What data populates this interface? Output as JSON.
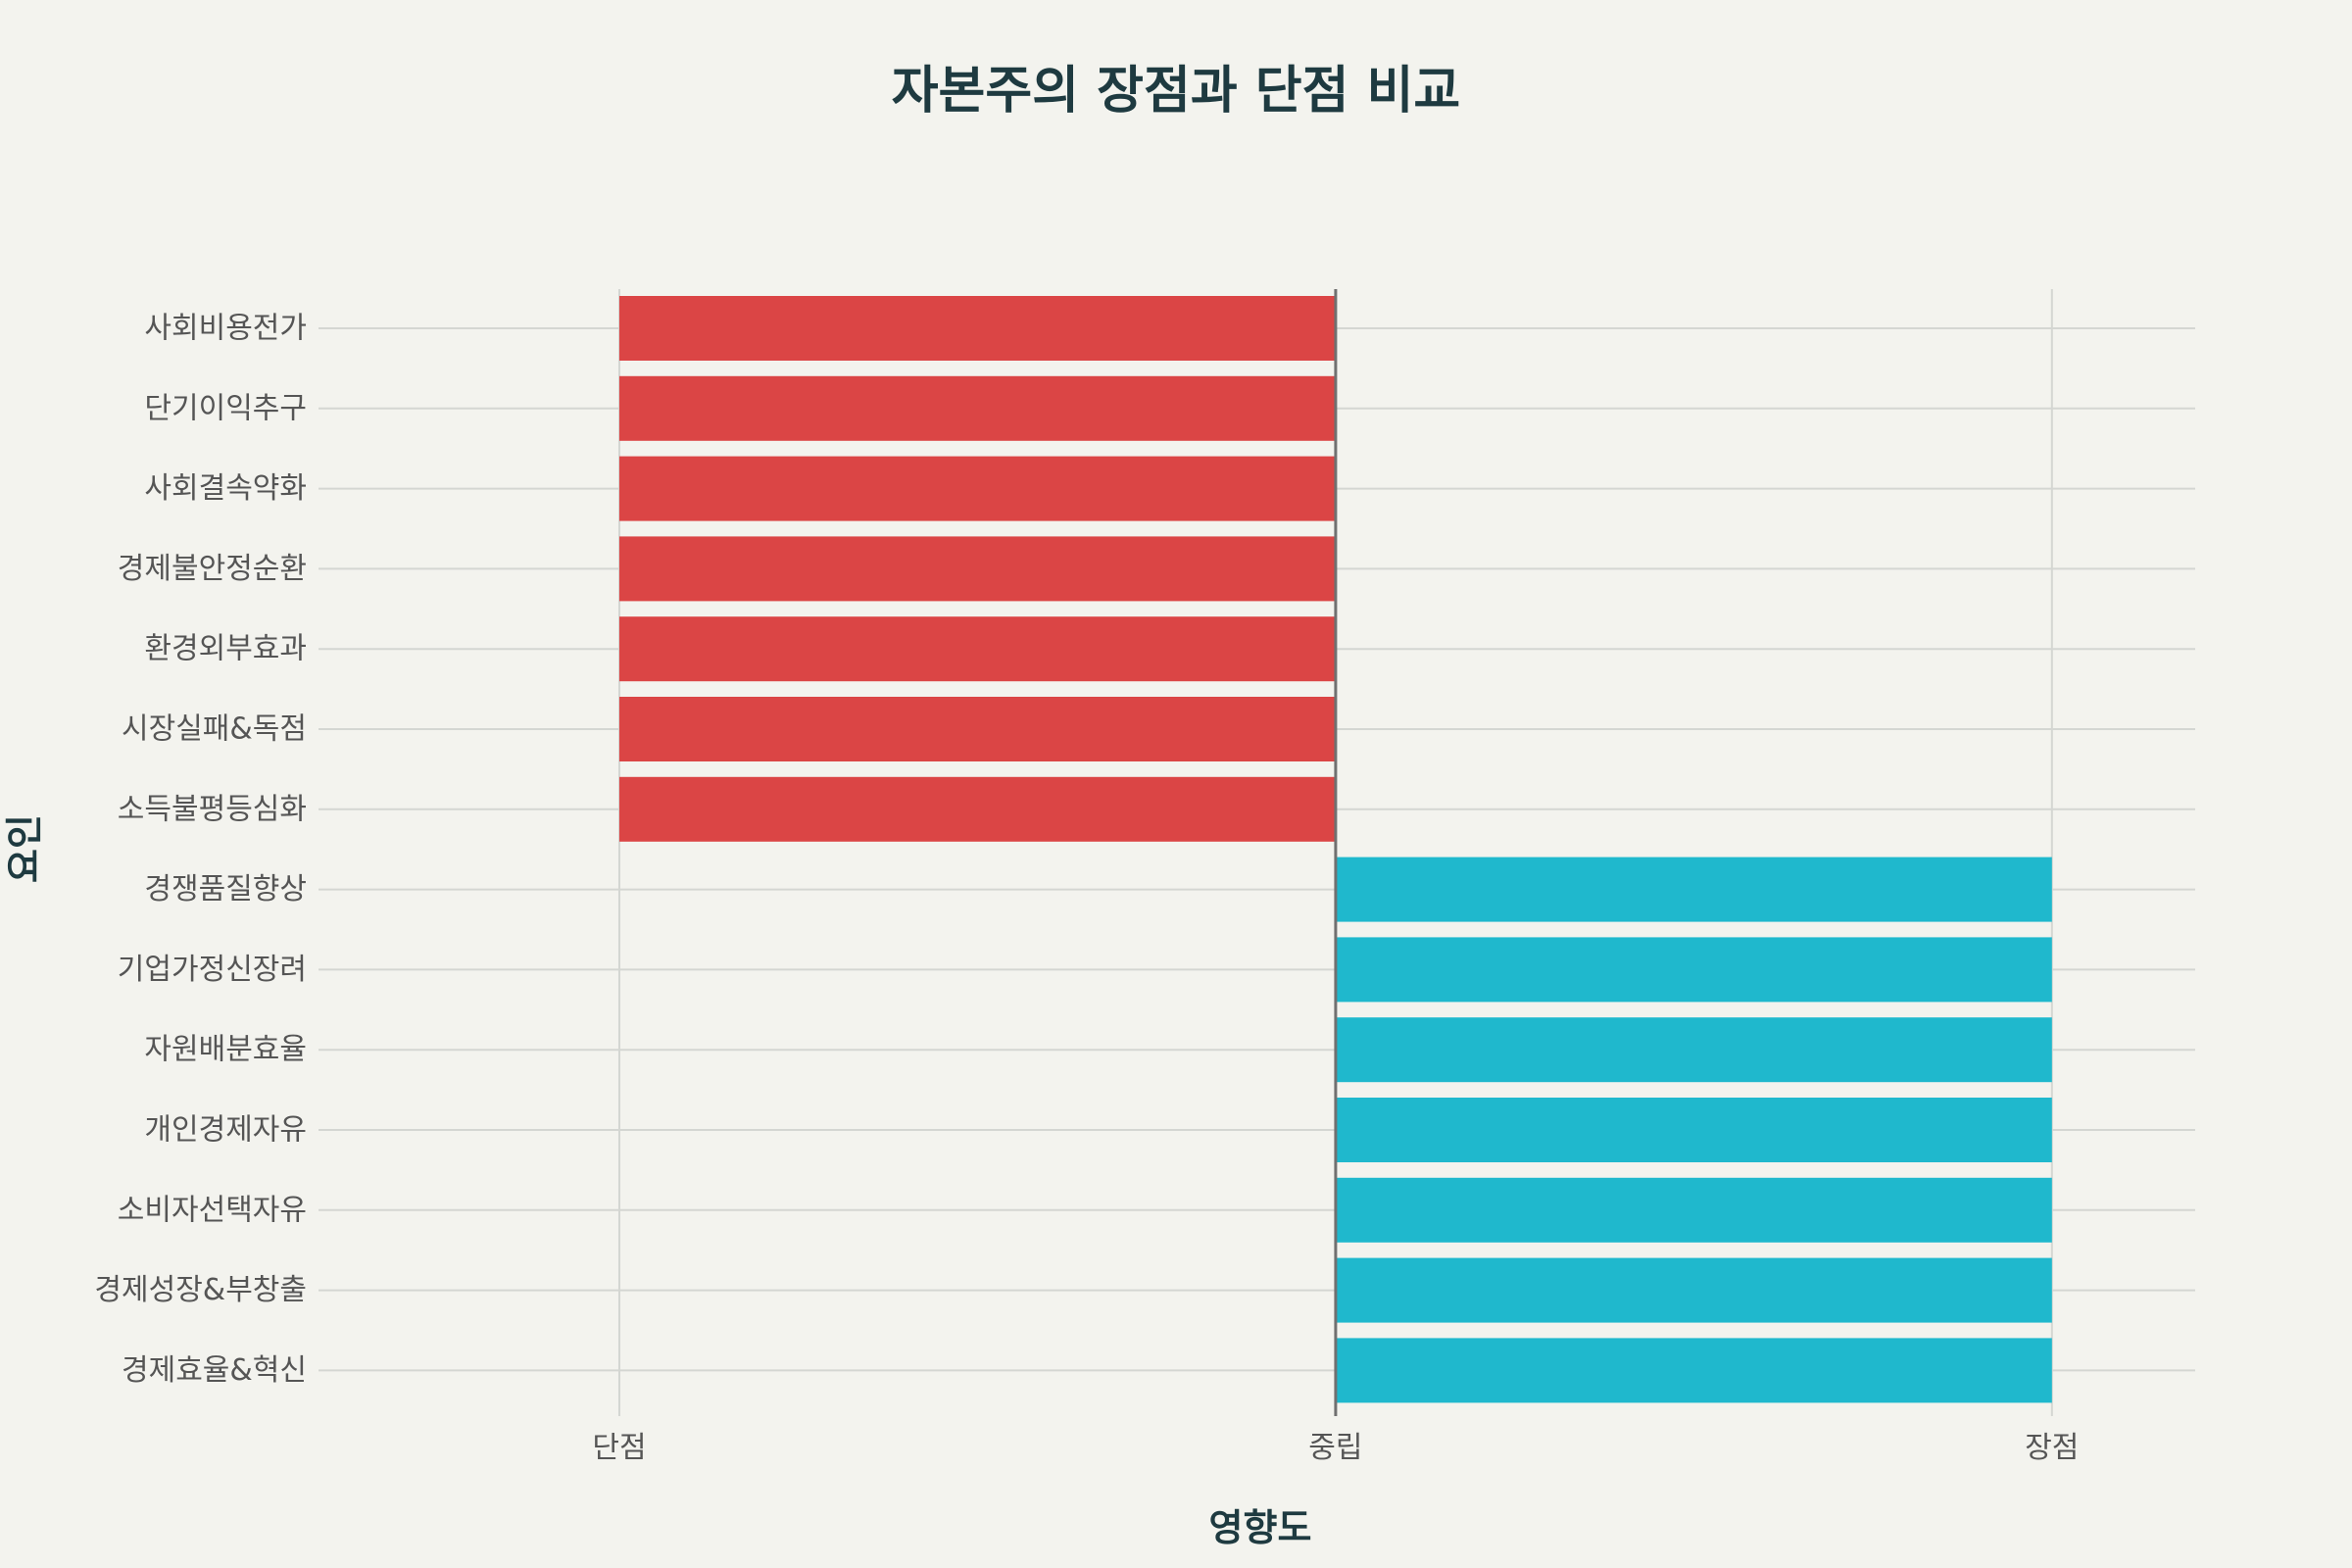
{
  "chart_data": {
    "type": "bar",
    "orientation": "horizontal",
    "title": "자본주의 장점과 단점 비교",
    "xlabel": "영향도",
    "ylabel": "요인",
    "xlim": [
      -1.42,
      1.2
    ],
    "x_ticks": [
      {
        "value": -1,
        "label": "단점"
      },
      {
        "value": 0,
        "label": "중립"
      },
      {
        "value": 1,
        "label": "장점"
      }
    ],
    "categories": [
      "사회비용전가",
      "단기이익추구",
      "사회결속약화",
      "경제불안정순환",
      "환경외부효과",
      "시장실패&독점",
      "소득불평등심화",
      "경쟁품질향상",
      "기업가정신장려",
      "자원배분효율",
      "개인경제자유",
      "소비자선택자유",
      "경제성장&부창출",
      "경제효율&혁신"
    ],
    "series": [
      {
        "name": "단점",
        "color": "#db4545",
        "values": [
          -1,
          -1,
          -1,
          -1,
          -1,
          -1,
          -1,
          null,
          null,
          null,
          null,
          null,
          null,
          null
        ]
      },
      {
        "name": "장점",
        "color": "#1fb8cd",
        "values": [
          null,
          null,
          null,
          null,
          null,
          null,
          null,
          1,
          1,
          1,
          1,
          1,
          1,
          1
        ]
      }
    ],
    "grid": true,
    "legend": false
  }
}
